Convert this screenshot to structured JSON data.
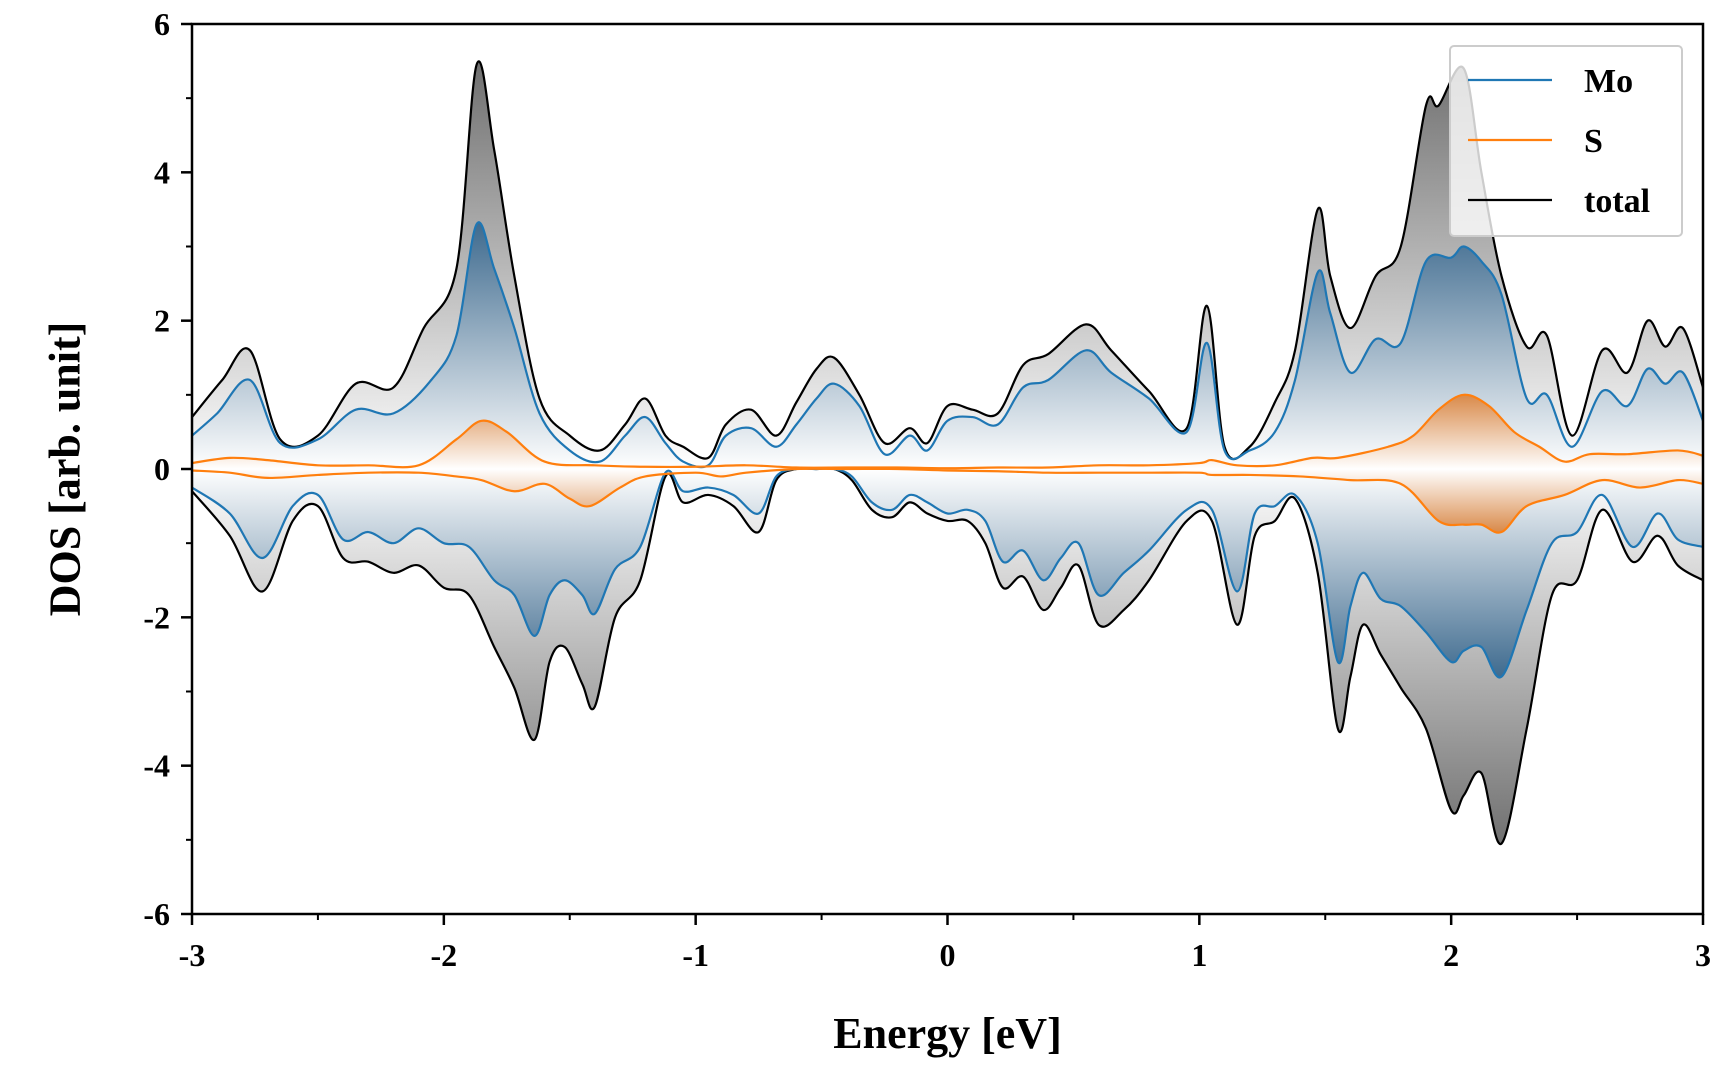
{
  "chart_data": {
    "type": "area",
    "title": "",
    "xlabel": "Energy [eV]",
    "ylabel": "DOS [arb. unit]",
    "xlim": [
      -3,
      3
    ],
    "ylim": [
      -6,
      6
    ],
    "xticks": [
      -3,
      -2,
      -1,
      0,
      1,
      2,
      3
    ],
    "xtick_labels": [
      "-3",
      "-2",
      "-1",
      "0",
      "1",
      "2",
      "3"
    ],
    "yticks": [
      -6,
      -4,
      -2,
      0,
      2,
      4,
      6
    ],
    "ytick_labels": [
      "-6",
      "-4",
      "-2",
      "0",
      "2",
      "4",
      "6"
    ],
    "x_minor_step": 0.5,
    "y_minor_step": 1,
    "grid": false,
    "legend_position": "top-right",
    "colors": {
      "Mo": "#1f77b4",
      "S": "#ff7f0e",
      "total": "#000000"
    },
    "series": [
      {
        "name": "Mo",
        "spin": "up",
        "x": [
          -3.0,
          -2.9,
          -2.77,
          -2.65,
          -2.5,
          -2.35,
          -2.2,
          -2.05,
          -1.95,
          -1.87,
          -1.8,
          -1.72,
          -1.62,
          -1.5,
          -1.38,
          -1.28,
          -1.2,
          -1.12,
          -1.05,
          -0.95,
          -0.88,
          -0.78,
          -0.68,
          -0.6,
          -0.52,
          -0.45,
          -0.35,
          -0.25,
          -0.15,
          -0.08,
          0.0,
          0.1,
          0.2,
          0.3,
          0.4,
          0.55,
          0.65,
          0.8,
          0.95,
          1.03,
          1.1,
          1.2,
          1.3,
          1.38,
          1.47,
          1.52,
          1.6,
          1.7,
          1.8,
          1.9,
          2.0,
          2.05,
          2.12,
          2.2,
          2.3,
          2.38,
          2.48,
          2.6,
          2.7,
          2.78,
          2.85,
          2.92,
          3.0
        ],
        "y": [
          0.45,
          0.75,
          1.2,
          0.35,
          0.4,
          0.8,
          0.75,
          1.2,
          1.8,
          3.3,
          2.7,
          1.9,
          0.75,
          0.25,
          0.1,
          0.45,
          0.7,
          0.35,
          0.1,
          0.05,
          0.45,
          0.55,
          0.3,
          0.6,
          0.95,
          1.15,
          0.85,
          0.2,
          0.45,
          0.25,
          0.65,
          0.7,
          0.6,
          1.1,
          1.2,
          1.6,
          1.3,
          0.95,
          0.5,
          1.7,
          0.25,
          0.25,
          0.5,
          1.2,
          2.65,
          2.1,
          1.3,
          1.75,
          1.7,
          2.8,
          2.85,
          3.0,
          2.8,
          2.35,
          0.95,
          1.0,
          0.3,
          1.05,
          0.85,
          1.35,
          1.15,
          1.3,
          0.65
        ]
      },
      {
        "name": "Mo",
        "spin": "down",
        "x": [
          -3.0,
          -2.85,
          -2.72,
          -2.6,
          -2.5,
          -2.4,
          -2.3,
          -2.2,
          -2.1,
          -2.0,
          -1.9,
          -1.8,
          -1.72,
          -1.64,
          -1.58,
          -1.52,
          -1.45,
          -1.4,
          -1.32,
          -1.22,
          -1.12,
          -1.05,
          -0.95,
          -0.85,
          -0.75,
          -0.68,
          -0.6,
          -0.52,
          -0.45,
          -0.38,
          -0.3,
          -0.22,
          -0.15,
          -0.08,
          0.0,
          0.08,
          0.15,
          0.22,
          0.3,
          0.38,
          0.45,
          0.52,
          0.6,
          0.7,
          0.8,
          0.95,
          1.05,
          1.15,
          1.22,
          1.3,
          1.38,
          1.47,
          1.55,
          1.6,
          1.65,
          1.72,
          1.8,
          1.9,
          2.0,
          2.05,
          2.12,
          2.2,
          2.3,
          2.4,
          2.5,
          2.6,
          2.72,
          2.82,
          2.9,
          3.0
        ],
        "y": [
          -0.25,
          -0.6,
          -1.2,
          -0.5,
          -0.35,
          -0.95,
          -0.85,
          -1.0,
          -0.8,
          -1.0,
          -1.05,
          -1.5,
          -1.7,
          -2.25,
          -1.7,
          -1.5,
          -1.7,
          -1.95,
          -1.35,
          -1.05,
          -0.05,
          -0.3,
          -0.25,
          -0.35,
          -0.6,
          -0.1,
          0.0,
          0.0,
          0.0,
          -0.1,
          -0.45,
          -0.55,
          -0.35,
          -0.45,
          -0.6,
          -0.55,
          -0.7,
          -1.25,
          -1.1,
          -1.5,
          -1.2,
          -1.0,
          -1.7,
          -1.4,
          -1.1,
          -0.55,
          -0.55,
          -1.65,
          -0.6,
          -0.5,
          -0.35,
          -1.0,
          -2.6,
          -1.85,
          -1.4,
          -1.75,
          -1.85,
          -2.2,
          -2.6,
          -2.45,
          -2.4,
          -2.8,
          -1.9,
          -1.0,
          -0.85,
          -0.35,
          -1.05,
          -0.6,
          -0.95,
          -1.05
        ]
      },
      {
        "name": "S",
        "spin": "up",
        "x": [
          -3.0,
          -2.85,
          -2.7,
          -2.5,
          -2.3,
          -2.1,
          -1.95,
          -1.85,
          -1.75,
          -1.6,
          -1.4,
          -1.2,
          -1.0,
          -0.8,
          -0.6,
          -0.4,
          -0.2,
          0.0,
          0.2,
          0.4,
          0.6,
          0.8,
          1.0,
          1.05,
          1.15,
          1.3,
          1.45,
          1.55,
          1.75,
          1.85,
          1.95,
          2.05,
          2.15,
          2.25,
          2.35,
          2.45,
          2.55,
          2.7,
          2.9,
          3.0
        ],
        "y": [
          0.08,
          0.15,
          0.12,
          0.05,
          0.05,
          0.05,
          0.4,
          0.65,
          0.5,
          0.1,
          0.05,
          0.03,
          0.03,
          0.05,
          0.02,
          0.02,
          0.02,
          0.01,
          0.02,
          0.02,
          0.05,
          0.05,
          0.08,
          0.12,
          0.05,
          0.05,
          0.15,
          0.15,
          0.3,
          0.45,
          0.8,
          1.0,
          0.85,
          0.5,
          0.3,
          0.1,
          0.2,
          0.2,
          0.25,
          0.18
        ]
      },
      {
        "name": "S",
        "spin": "down",
        "x": [
          -3.0,
          -2.85,
          -2.7,
          -2.5,
          -2.3,
          -2.1,
          -1.95,
          -1.85,
          -1.72,
          -1.6,
          -1.5,
          -1.42,
          -1.3,
          -1.2,
          -1.0,
          -0.9,
          -0.8,
          -0.6,
          -0.4,
          -0.2,
          0.0,
          0.2,
          0.4,
          0.6,
          0.8,
          1.0,
          1.05,
          1.2,
          1.4,
          1.6,
          1.8,
          1.95,
          2.05,
          2.12,
          2.2,
          2.3,
          2.45,
          2.6,
          2.75,
          2.9,
          3.0
        ],
        "y": [
          -0.02,
          -0.05,
          -0.12,
          -0.08,
          -0.05,
          -0.05,
          -0.1,
          -0.15,
          -0.3,
          -0.2,
          -0.4,
          -0.5,
          -0.25,
          -0.1,
          -0.05,
          -0.1,
          -0.05,
          0.0,
          0.0,
          0.0,
          -0.02,
          -0.03,
          -0.05,
          -0.05,
          -0.05,
          -0.05,
          -0.08,
          -0.08,
          -0.1,
          -0.15,
          -0.2,
          -0.7,
          -0.75,
          -0.75,
          -0.85,
          -0.5,
          -0.35,
          -0.15,
          -0.25,
          -0.15,
          -0.2
        ]
      },
      {
        "name": "total",
        "spin": "up",
        "x": [
          -3.0,
          -2.88,
          -2.77,
          -2.65,
          -2.5,
          -2.35,
          -2.2,
          -2.08,
          -1.95,
          -1.87,
          -1.8,
          -1.72,
          -1.62,
          -1.5,
          -1.38,
          -1.28,
          -1.2,
          -1.12,
          -1.05,
          -0.95,
          -0.88,
          -0.78,
          -0.68,
          -0.6,
          -0.52,
          -0.45,
          -0.35,
          -0.25,
          -0.15,
          -0.08,
          0.0,
          0.1,
          0.2,
          0.3,
          0.4,
          0.55,
          0.65,
          0.8,
          0.95,
          1.03,
          1.1,
          1.2,
          1.3,
          1.38,
          1.47,
          1.52,
          1.6,
          1.7,
          1.8,
          1.9,
          1.95,
          2.05,
          2.12,
          2.2,
          2.3,
          2.38,
          2.48,
          2.6,
          2.7,
          2.78,
          2.85,
          2.92,
          3.0
        ],
        "y": [
          0.7,
          1.2,
          1.6,
          0.4,
          0.45,
          1.15,
          1.1,
          1.9,
          2.7,
          5.45,
          4.3,
          2.6,
          0.95,
          0.45,
          0.25,
          0.6,
          0.95,
          0.45,
          0.3,
          0.15,
          0.6,
          0.8,
          0.45,
          0.9,
          1.35,
          1.5,
          1.0,
          0.35,
          0.55,
          0.35,
          0.85,
          0.8,
          0.75,
          1.4,
          1.55,
          1.95,
          1.6,
          1.05,
          0.55,
          2.2,
          0.3,
          0.3,
          0.9,
          1.6,
          3.5,
          2.6,
          1.9,
          2.6,
          3.0,
          4.9,
          4.9,
          5.4,
          4.0,
          2.6,
          1.65,
          1.8,
          0.45,
          1.6,
          1.3,
          2.0,
          1.65,
          1.9,
          1.1
        ]
      },
      {
        "name": "total",
        "spin": "down",
        "x": [
          -3.0,
          -2.85,
          -2.72,
          -2.6,
          -2.5,
          -2.4,
          -2.3,
          -2.2,
          -2.1,
          -2.0,
          -1.9,
          -1.8,
          -1.72,
          -1.64,
          -1.58,
          -1.52,
          -1.45,
          -1.4,
          -1.32,
          -1.22,
          -1.12,
          -1.05,
          -0.95,
          -0.85,
          -0.75,
          -0.68,
          -0.6,
          -0.52,
          -0.45,
          -0.38,
          -0.3,
          -0.22,
          -0.15,
          -0.08,
          0.0,
          0.08,
          0.15,
          0.22,
          0.3,
          0.38,
          0.45,
          0.52,
          0.6,
          0.7,
          0.8,
          0.95,
          1.05,
          1.15,
          1.22,
          1.3,
          1.38,
          1.47,
          1.55,
          1.6,
          1.65,
          1.72,
          1.8,
          1.9,
          2.0,
          2.05,
          2.12,
          2.2,
          2.3,
          2.4,
          2.5,
          2.6,
          2.72,
          2.82,
          2.9,
          3.0
        ],
        "y": [
          -0.3,
          -0.9,
          -1.65,
          -0.7,
          -0.5,
          -1.2,
          -1.25,
          -1.4,
          -1.3,
          -1.6,
          -1.7,
          -2.4,
          -2.95,
          -3.65,
          -2.6,
          -2.4,
          -2.9,
          -3.2,
          -2.0,
          -1.5,
          -0.1,
          -0.45,
          -0.35,
          -0.5,
          -0.85,
          -0.15,
          0.0,
          0.0,
          0.0,
          -0.15,
          -0.55,
          -0.65,
          -0.45,
          -0.6,
          -0.7,
          -0.7,
          -1.0,
          -1.6,
          -1.45,
          -1.9,
          -1.6,
          -1.3,
          -2.1,
          -1.9,
          -1.5,
          -0.7,
          -0.7,
          -2.1,
          -0.9,
          -0.7,
          -0.4,
          -1.4,
          -3.5,
          -2.8,
          -2.1,
          -2.5,
          -2.95,
          -3.5,
          -4.6,
          -4.4,
          -4.1,
          -5.05,
          -3.5,
          -1.7,
          -1.5,
          -0.55,
          -1.25,
          -0.9,
          -1.3,
          -1.5
        ]
      }
    ]
  }
}
